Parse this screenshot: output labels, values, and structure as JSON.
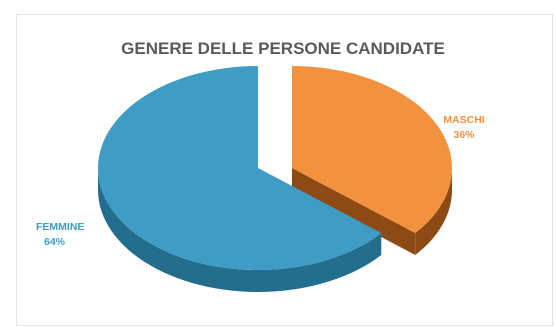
{
  "chart_data": {
    "type": "pie",
    "title": "GENERE DELLE PERSONE CANDIDATE",
    "categories": [
      "MASCHI",
      "FEMMINE"
    ],
    "values": [
      36,
      64
    ],
    "value_labels": [
      "36%",
      "64%"
    ],
    "colors": {
      "MASCHI": {
        "top": "#f2923e",
        "side": "#8e4a15",
        "label": "#f2923e"
      },
      "FEMMINE": {
        "top": "#3f9cc4",
        "side": "#236e8c",
        "label": "#3f9cc4"
      }
    },
    "style": "3d-exploded",
    "legend": "none"
  }
}
